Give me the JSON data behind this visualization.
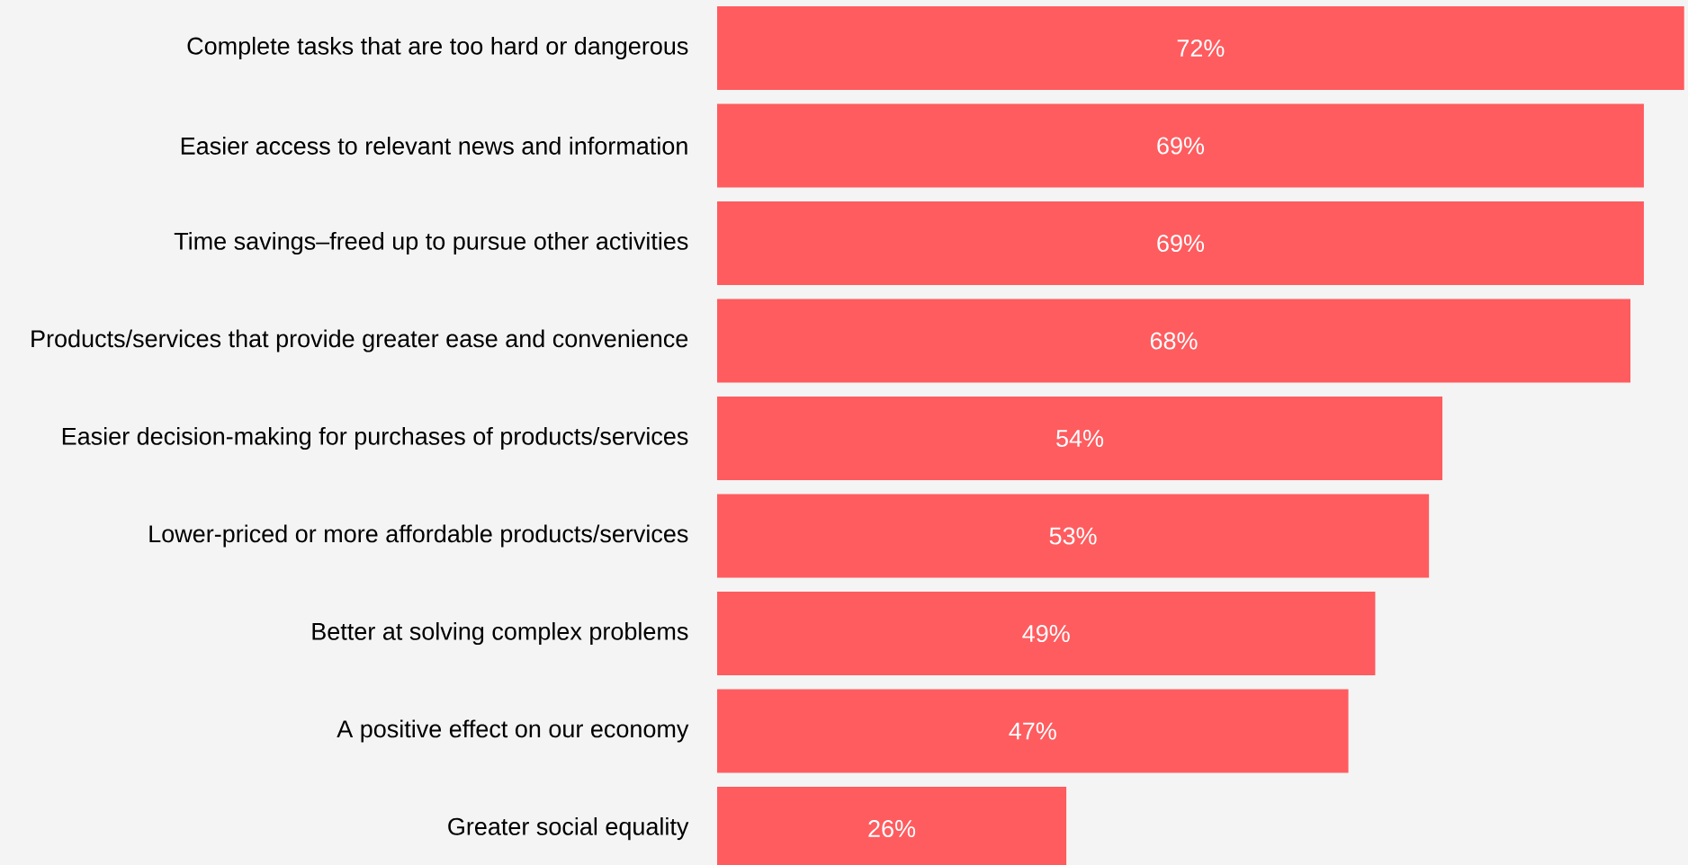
{
  "chart_data": {
    "type": "bar",
    "orientation": "horizontal",
    "categories": [
      "Complete tasks that are too hard or dangerous",
      "Easier access to relevant news and information",
      "Time savings–freed up to pursue other activities",
      "Products/services that provide greater ease and convenience",
      "Easier decision-making for purchases of products/services",
      "Lower-priced or more affordable products/services",
      "Better at solving complex problems",
      "A positive effect on our economy",
      "Greater social equality"
    ],
    "values": [
      72,
      69,
      69,
      68,
      54,
      53,
      49,
      47,
      26
    ],
    "value_labels": [
      "72%",
      "69%",
      "69%",
      "68%",
      "54%",
      "53%",
      "49%",
      "47%",
      "26%"
    ],
    "color": "#ff5c5f"
  }
}
